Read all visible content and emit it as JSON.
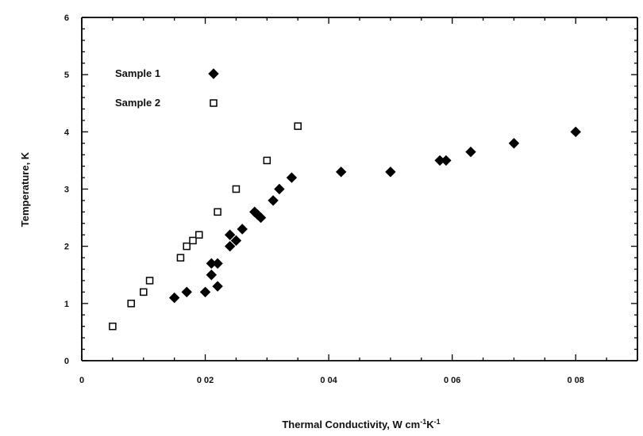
{
  "chart_data": {
    "type": "scatter",
    "xlabel": "Thermal Conductivity, W cm",
    "xlabel_parts": {
      "base": "Thermal Conductivity, W cm",
      "sup1": "-1",
      "mid": "K",
      "sup2": "-1"
    },
    "ylabel": "Temperature, K",
    "xlim": [
      0,
      0.09
    ],
    "ylim": [
      0,
      6
    ],
    "xticks": [
      0,
      0.02,
      0.04,
      0.06,
      0.08
    ],
    "xtick_labels": [
      "0",
      "0 02",
      "0 04",
      "0 06",
      "0 08"
    ],
    "yticks": [
      0,
      1,
      2,
      3,
      4,
      5,
      6
    ],
    "ytick_labels": [
      "0",
      "1",
      "2",
      "3",
      "4",
      "5",
      "6"
    ],
    "grid": false,
    "legend_position": "top-left",
    "series": [
      {
        "name": "Sample 1",
        "marker": "filled-diamond",
        "color": "#000000",
        "points": [
          [
            0.015,
            1.1
          ],
          [
            0.017,
            1.2
          ],
          [
            0.02,
            1.2
          ],
          [
            0.022,
            1.3
          ],
          [
            0.021,
            1.5
          ],
          [
            0.021,
            1.7
          ],
          [
            0.022,
            1.7
          ],
          [
            0.024,
            2.0
          ],
          [
            0.025,
            2.1
          ],
          [
            0.024,
            2.2
          ],
          [
            0.026,
            2.3
          ],
          [
            0.028,
            2.6
          ],
          [
            0.029,
            2.5
          ],
          [
            0.0285,
            2.55
          ],
          [
            0.031,
            2.8
          ],
          [
            0.032,
            3.0
          ],
          [
            0.034,
            3.2
          ],
          [
            0.042,
            3.3
          ],
          [
            0.05,
            3.3
          ],
          [
            0.058,
            3.5
          ],
          [
            0.059,
            3.5
          ],
          [
            0.063,
            3.65
          ],
          [
            0.07,
            3.8
          ],
          [
            0.08,
            4.0
          ]
        ]
      },
      {
        "name": "Sample 2",
        "marker": "open-square",
        "color": "#000000",
        "points": [
          [
            0.005,
            0.6
          ],
          [
            0.008,
            1.0
          ],
          [
            0.01,
            1.2
          ],
          [
            0.011,
            1.4
          ],
          [
            0.016,
            1.8
          ],
          [
            0.017,
            2.0
          ],
          [
            0.018,
            2.1
          ],
          [
            0.019,
            2.2
          ],
          [
            0.022,
            2.6
          ],
          [
            0.025,
            3.0
          ],
          [
            0.03,
            3.5
          ],
          [
            0.035,
            4.1
          ]
        ]
      }
    ]
  }
}
